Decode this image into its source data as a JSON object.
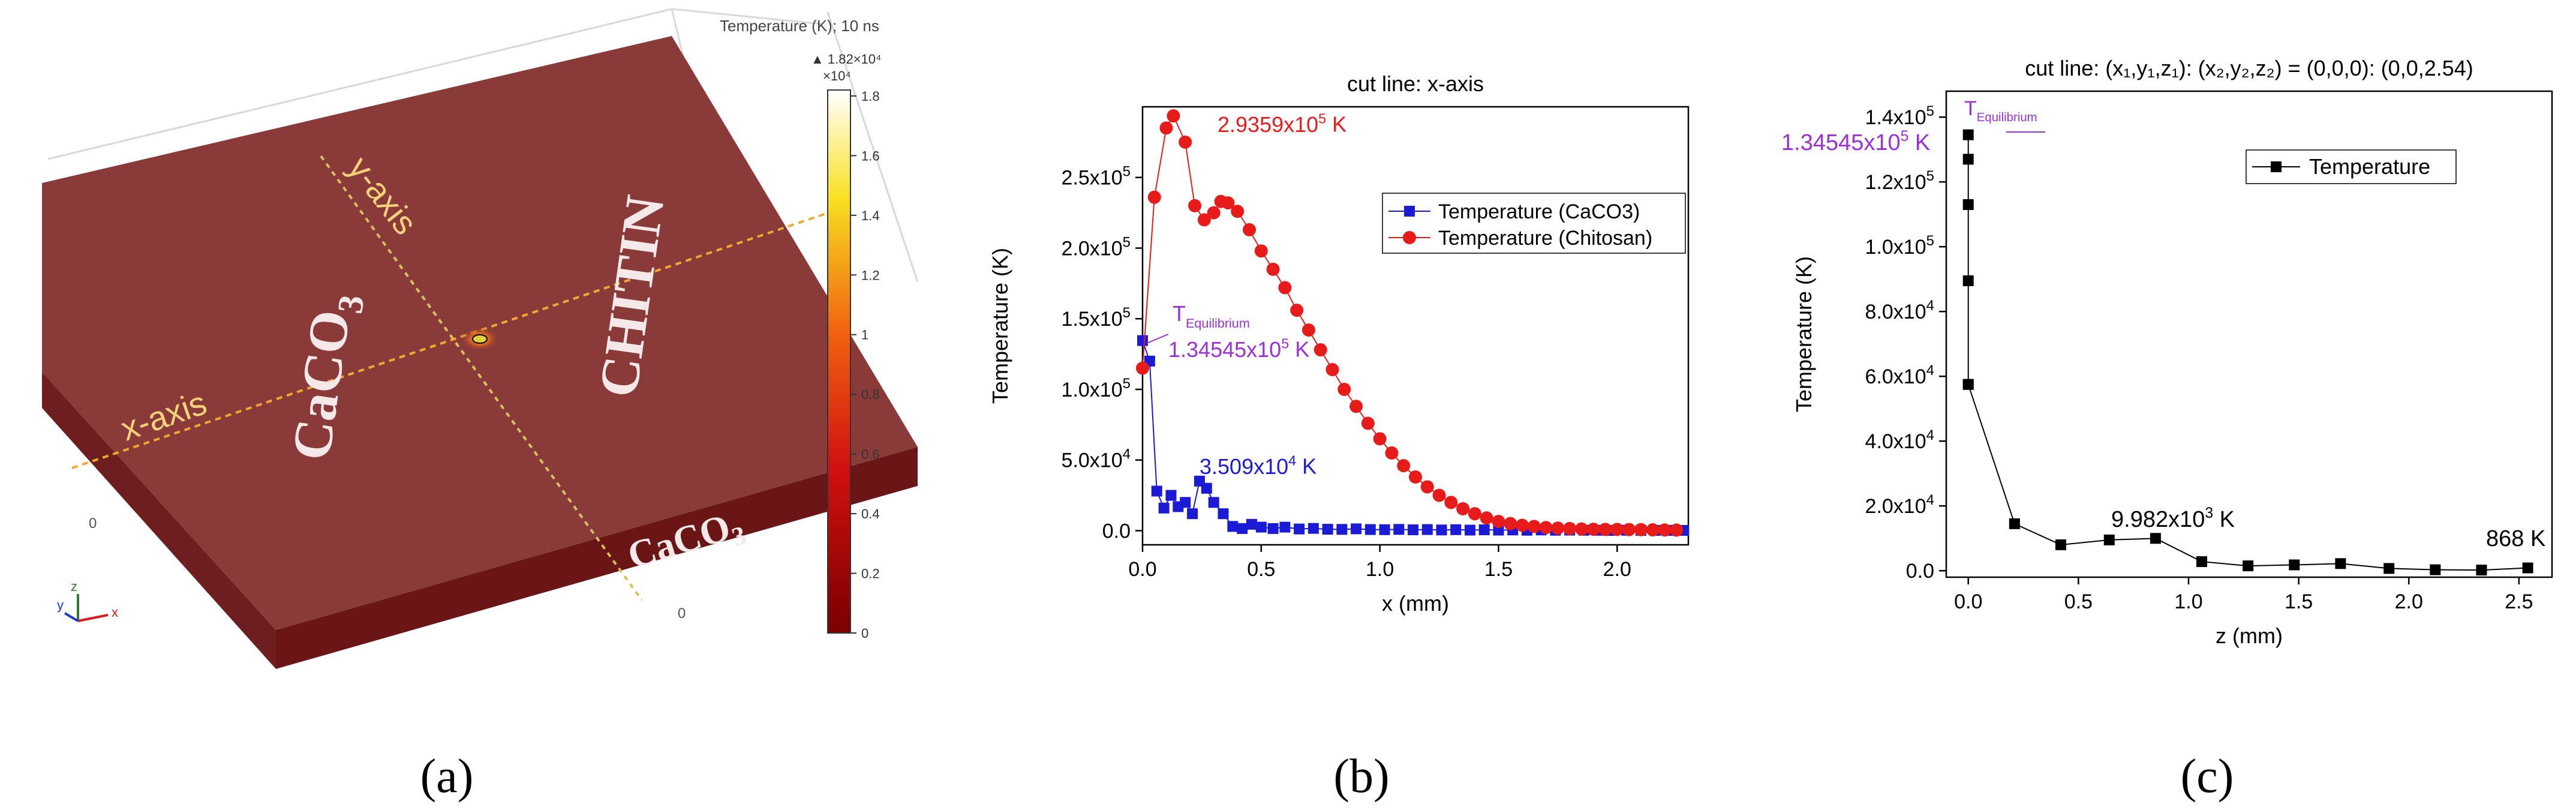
{
  "panel_labels": {
    "a": "(a)",
    "b": "(b)",
    "c": "(c)"
  },
  "panel_a": {
    "colorbar_title": "Temperature (K); 10 ns",
    "colorbar_max_label": "▲ 1.82×10⁴",
    "colorbar_multiplier": "×10⁴",
    "colorbar_ticks": [
      "1.8",
      "1.6",
      "1.4",
      "1.2",
      "1",
      "0.8",
      "0.6",
      "0.4",
      "0.2",
      "0"
    ],
    "colorbar_tick_values": [
      1.8,
      1.6,
      1.4,
      1.2,
      1.0,
      0.8,
      0.6,
      0.4,
      0.2,
      0.0
    ],
    "colorbar_range": [
      0,
      1.82
    ],
    "material_left": "CaCO",
    "material_left_sub": "3",
    "material_right": "CHITIN",
    "material_front": "CaCO",
    "material_front_sub": "3",
    "axis_x_label": "x-axis",
    "axis_y_label": "y-axis",
    "zero_labels": [
      "0",
      "0"
    ],
    "triad_labels": [
      "z",
      "y",
      "x"
    ],
    "colors": {
      "slab_top": "#8b3a3a",
      "slab_side": "#6a1616",
      "cutline": "#f0a830",
      "label": "#f3d27a"
    }
  },
  "chart_data": [
    {
      "id": "b",
      "type": "scatter",
      "title": "cut line: x-axis",
      "xlabel": "x (mm)",
      "ylabel": "Temperature (K)",
      "xlim": [
        0,
        2.3
      ],
      "ylim": [
        -10000,
        300000
      ],
      "xticks": [
        0.0,
        0.5,
        1.0,
        1.5,
        2.0
      ],
      "xtick_labels": [
        "0.0",
        "0.5",
        "1.0",
        "1.5",
        "2.0"
      ],
      "yticks": [
        0,
        50000,
        100000,
        150000,
        200000,
        250000
      ],
      "ytick_base": [
        "0.0",
        "5.0x10",
        "1.0x10",
        "1.5x10",
        "2.0x10",
        "2.5x10"
      ],
      "ytick_exp": [
        "",
        "4",
        "5",
        "5",
        "5",
        "5"
      ],
      "legend": "right, upper-middle",
      "series": [
        {
          "name": "Temperature (CaCO3)",
          "color": "#1b1bd6",
          "marker": "square",
          "x": [
            0.0,
            0.03,
            0.06,
            0.09,
            0.12,
            0.15,
            0.18,
            0.21,
            0.24,
            0.27,
            0.3,
            0.34,
            0.38,
            0.42,
            0.46,
            0.5,
            0.55,
            0.6,
            0.66,
            0.72,
            0.78,
            0.84,
            0.9,
            0.96,
            1.02,
            1.08,
            1.14,
            1.2,
            1.26,
            1.32,
            1.38,
            1.44,
            1.5,
            1.56,
            1.62,
            1.68,
            1.74,
            1.8,
            1.86,
            1.92,
            1.98,
            2.04,
            2.1,
            2.16,
            2.22,
            2.28
          ],
          "y": [
            134545,
            120000,
            28000,
            16000,
            25000,
            17000,
            20000,
            12000,
            35090,
            30000,
            20000,
            12000,
            3000,
            1500,
            4500,
            2500,
            1500,
            2500,
            1200,
            1600,
            1000,
            900,
            1300,
            800,
            700,
            900,
            600,
            800,
            500,
            700,
            400,
            600,
            400,
            500,
            300,
            500,
            300,
            400,
            300,
            300,
            200,
            300,
            200,
            200,
            200,
            200
          ]
        },
        {
          "name": "Temperature (Chitosan)",
          "color": "#e81b1b",
          "marker": "circle",
          "x": [
            0.0,
            0.05,
            0.1,
            0.13,
            0.18,
            0.22,
            0.26,
            0.3,
            0.33,
            0.36,
            0.4,
            0.45,
            0.5,
            0.55,
            0.6,
            0.65,
            0.7,
            0.75,
            0.8,
            0.85,
            0.9,
            0.95,
            1.0,
            1.05,
            1.1,
            1.15,
            1.2,
            1.25,
            1.3,
            1.35,
            1.4,
            1.45,
            1.5,
            1.55,
            1.6,
            1.65,
            1.7,
            1.75,
            1.8,
            1.85,
            1.9,
            1.95,
            2.0,
            2.05,
            2.1,
            2.15,
            2.2,
            2.25
          ],
          "y": [
            115000,
            236000,
            285000,
            293590,
            275000,
            230000,
            220000,
            225000,
            233000,
            232000,
            226000,
            213000,
            198000,
            185000,
            172000,
            156000,
            142000,
            128000,
            114000,
            100000,
            88000,
            76000,
            65000,
            55000,
            46000,
            38000,
            31000,
            25000,
            20000,
            15500,
            12000,
            9000,
            6500,
            5000,
            3800,
            3000,
            2200,
            1800,
            1500,
            1200,
            1000,
            900,
            900,
            800,
            700,
            600,
            500,
            400
          ]
        }
      ],
      "annotations": {
        "peak_red": "2.9359x10",
        "peak_red_exp": "5",
        "peak_red_unit": " K",
        "t_eq": "T",
        "t_eq_sub": "Equilibrium",
        "t_eq_value": "1.34545x10",
        "t_eq_value_exp": "5",
        "t_eq_unit": " K",
        "peak_blue": "3.509x10",
        "peak_blue_exp": "4",
        "peak_blue_unit": " K"
      },
      "annotation_colors": {
        "peak_red": "#e81b1b",
        "t_eq": "#9b30d9",
        "peak_blue": "#1b1bd6"
      }
    },
    {
      "id": "c",
      "type": "line",
      "title": "cut line: (x₁,y₁,z₁): (x₂,y₂,z₂) = (0,0,0): (0,0,2.54)",
      "xlabel": "z (mm)",
      "ylabel": "Temperature (K)",
      "xlim": [
        -0.1,
        2.65
      ],
      "ylim": [
        -2000,
        148000
      ],
      "xticks": [
        0.0,
        0.5,
        1.0,
        1.5,
        2.0,
        2.5
      ],
      "xtick_labels": [
        "0.0",
        "0.5",
        "1.0",
        "1.5",
        "2.0",
        "2.5"
      ],
      "yticks": [
        0,
        20000,
        40000,
        60000,
        80000,
        100000,
        120000,
        140000
      ],
      "ytick_base": [
        "0.0",
        "2.0x10",
        "4.0x10",
        "6.0x10",
        "8.0x10",
        "1.0x10",
        "1.2x10",
        "1.4x10"
      ],
      "ytick_exp": [
        "",
        "4",
        "4",
        "4",
        "4",
        "5",
        "5",
        "5"
      ],
      "legend": "upper-right",
      "series": [
        {
          "name": "Temperature",
          "color": "#000000",
          "marker": "square",
          "x": [
            0.0,
            0.0,
            0.0,
            0.0,
            0.0,
            0.0,
            0.21,
            0.42,
            0.64,
            0.85,
            1.06,
            1.27,
            1.48,
            1.69,
            1.91,
            2.12,
            2.33,
            2.54
          ],
          "y": [
            134545,
            127000,
            113000,
            89500,
            57500,
            57500,
            14500,
            8000,
            9500,
            9982,
            2800,
            1500,
            1800,
            2200,
            700,
            300,
            200,
            868
          ]
        }
      ],
      "annotations": {
        "t_eq": "T",
        "t_eq_sub": "Equilibrium",
        "t_eq_value": "1.34545x10",
        "t_eq_value_exp": "5",
        "t_eq_unit": " K",
        "mid": "9.982x10",
        "mid_exp": "3",
        "mid_unit": " K",
        "end": "868 K"
      },
      "annotation_colors": {
        "t_eq": "#9b30d9"
      }
    }
  ]
}
